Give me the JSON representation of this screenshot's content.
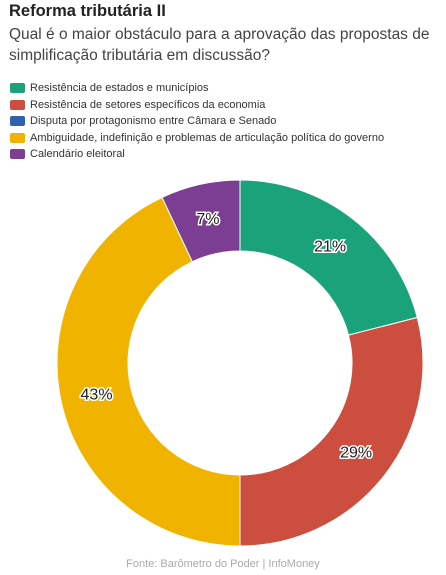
{
  "header": {
    "title": "Reforma tributária II",
    "subtitle": "Qual é o maior obstáculo para a aprovação das propostas de simplificação tributária em discussão?"
  },
  "legend": [
    {
      "label": "Resistência de estados e municípios",
      "color": "#1aa37b"
    },
    {
      "label": "Resistência de setores específicos da economia",
      "color": "#cc4e3e"
    },
    {
      "label": "Disputa por protagonismo entre Câmara e Senado",
      "color": "#2e62ad"
    },
    {
      "label": "Ambiguidade, indefinição e problemas de articulação política do governo",
      "color": "#f0b400"
    },
    {
      "label": "Calendário eleitoral",
      "color": "#7b3e93"
    }
  ],
  "chart_data": {
    "type": "pie",
    "donut": true,
    "categories": [
      "Resistência de estados e municípios",
      "Resistência de setores específicos da economia",
      "Disputa por protagonismo entre Câmara e Senado",
      "Ambiguidade, indefinição e problemas de articulação política do governo",
      "Calendário eleitoral"
    ],
    "values": [
      21,
      29,
      0,
      43,
      7
    ],
    "value_labels": [
      "21%",
      "29%",
      "",
      "43%",
      "7%"
    ],
    "colors": [
      "#1aa37b",
      "#cc4e3e",
      "#2e62ad",
      "#f0b400",
      "#7b3e93"
    ],
    "legend_position": "top-left"
  },
  "footer": {
    "source": "Fonte: Barômetro do Poder | InfoMoney"
  }
}
